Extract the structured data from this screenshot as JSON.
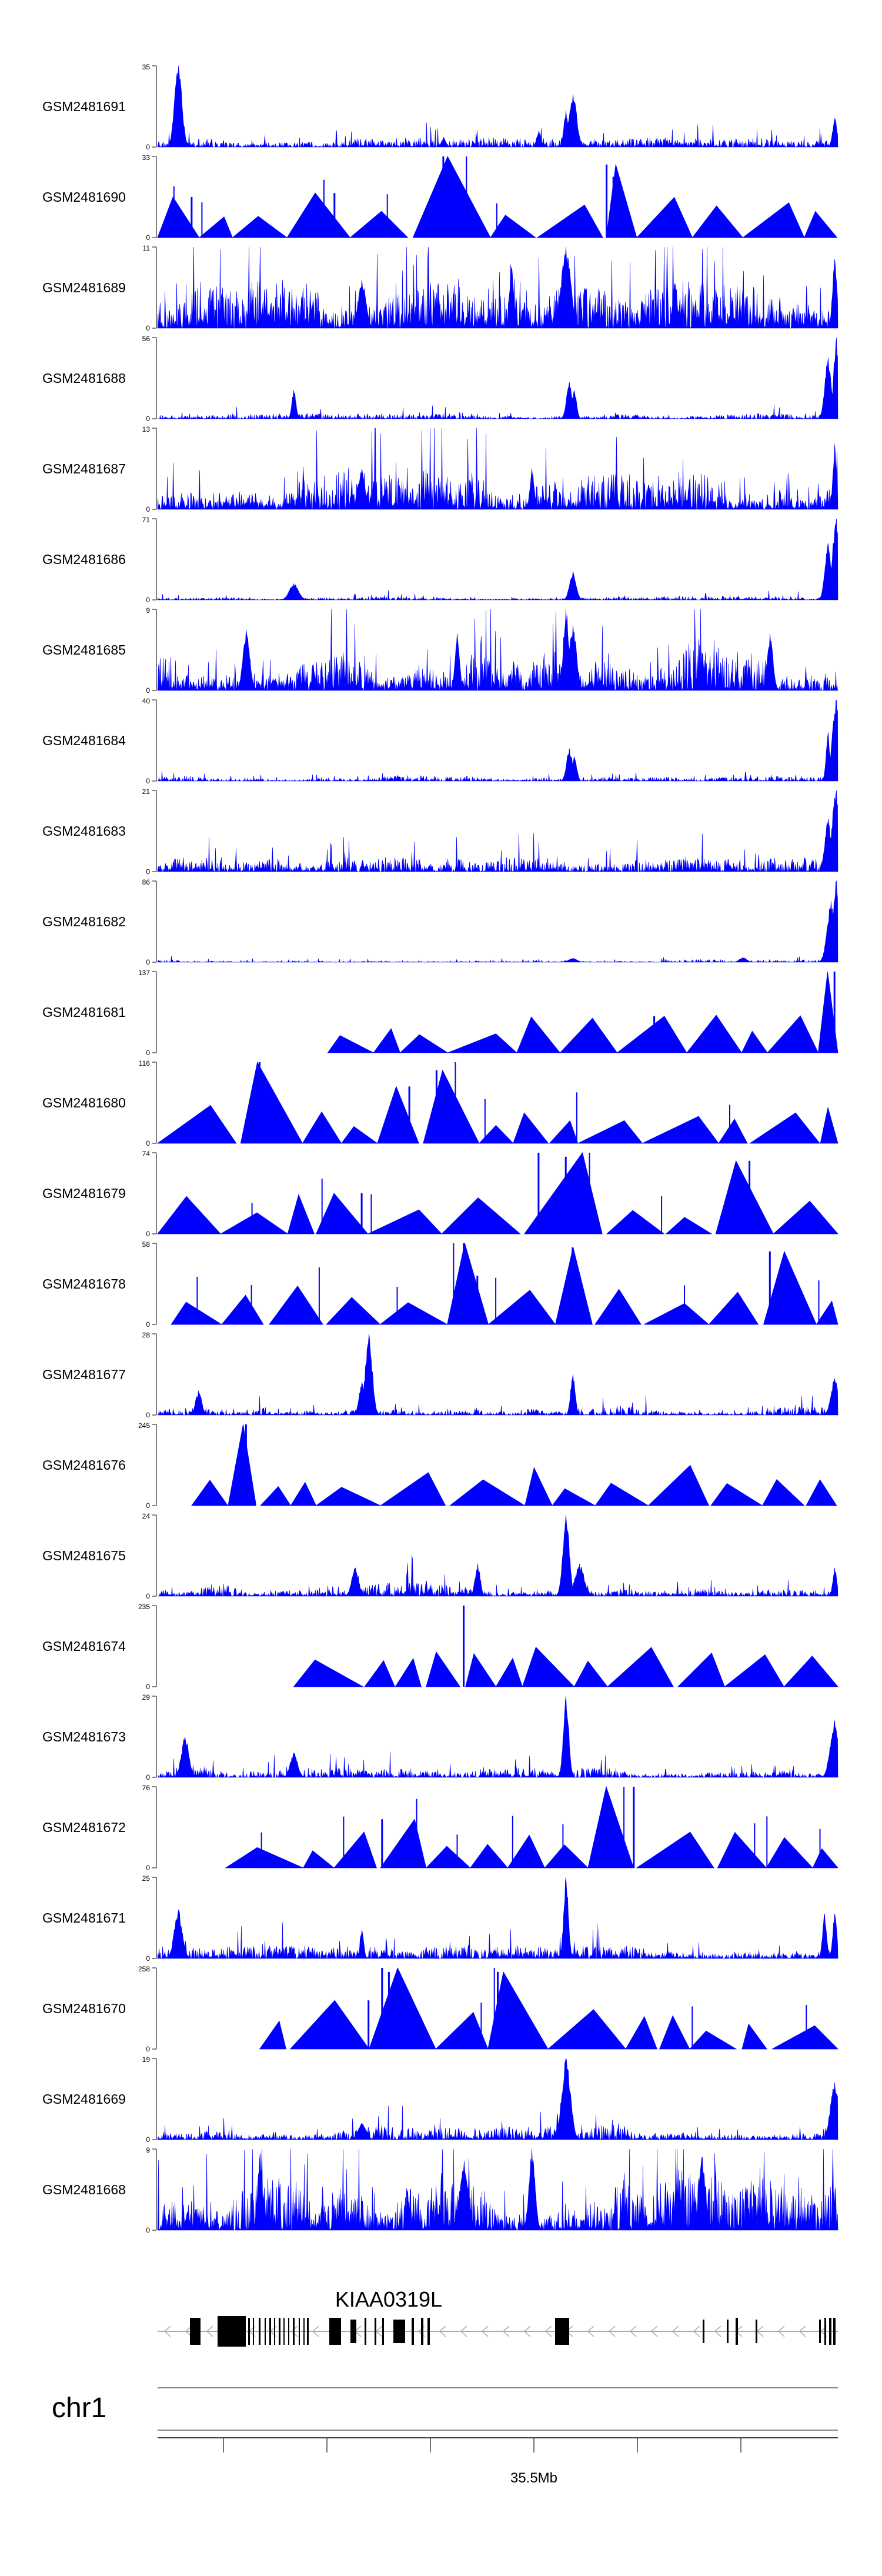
{
  "chart_data": {
    "type": "area",
    "title": "",
    "xlabel": "",
    "ylabel": "",
    "color": "#0000ff",
    "tracks": [
      {
        "name": "GSM2481691",
        "ymax": 35,
        "ymin": 0,
        "style": "noise",
        "baseline": 0.05,
        "density": 0.9,
        "peaks": [
          [
            0.03,
            1.0
          ],
          [
            0.61,
            0.65
          ],
          [
            0.6,
            0.45
          ],
          [
            0.56,
            0.2
          ],
          [
            0.42,
            0.12
          ],
          [
            0.995,
            0.35
          ]
        ]
      },
      {
        "name": "GSM2481690",
        "ymax": 33,
        "ymin": 0,
        "style": "tri",
        "coverage": 1.0,
        "spiky": true,
        "peaks": [
          [
            0.42,
            1.0
          ],
          [
            0.43,
            0.85
          ],
          [
            0.66,
            0.9
          ],
          [
            0.67,
            0.75
          ],
          [
            0.05,
            0.5
          ],
          [
            0.26,
            0.55
          ]
        ]
      },
      {
        "name": "GSM2481689",
        "ymax": 11,
        "ymin": 0,
        "style": "noise",
        "baseline": 0.25,
        "density": 1.0,
        "peaks": [
          [
            0.6,
            1.0
          ],
          [
            0.52,
            0.75
          ],
          [
            0.995,
            0.85
          ],
          [
            0.3,
            0.6
          ],
          [
            0.76,
            0.55
          ]
        ]
      },
      {
        "name": "GSM2481688",
        "ymax": 56,
        "ymin": 0,
        "style": "noise",
        "baseline": 0.03,
        "density": 0.8,
        "peaks": [
          [
            0.2,
            0.35
          ],
          [
            0.605,
            0.45
          ],
          [
            0.612,
            0.35
          ],
          [
            0.985,
            0.75
          ],
          [
            0.997,
            1.0
          ]
        ]
      },
      {
        "name": "GSM2481687",
        "ymax": 13,
        "ymin": 0,
        "style": "noise",
        "baseline": 0.22,
        "density": 1.0,
        "peaks": [
          [
            0.995,
            0.8
          ],
          [
            0.3,
            0.5
          ],
          [
            0.55,
            0.5
          ]
        ]
      },
      {
        "name": "GSM2481686",
        "ymax": 71,
        "ymin": 0,
        "style": "noise",
        "baseline": 0.02,
        "density": 0.8,
        "peaks": [
          [
            0.2,
            0.2
          ],
          [
            0.61,
            0.35
          ],
          [
            0.985,
            0.7
          ],
          [
            0.997,
            1.0
          ]
        ]
      },
      {
        "name": "GSM2481685",
        "ymax": 9,
        "ymin": 0,
        "style": "noise",
        "baseline": 0.28,
        "density": 1.0,
        "peaks": [
          [
            0.6,
            1.0
          ],
          [
            0.61,
            0.8
          ],
          [
            0.13,
            0.75
          ],
          [
            0.44,
            0.7
          ],
          [
            0.9,
            0.7
          ]
        ]
      },
      {
        "name": "GSM2481684",
        "ymax": 40,
        "ymin": 0,
        "style": "noise",
        "baseline": 0.03,
        "density": 0.85,
        "peaks": [
          [
            0.605,
            0.4
          ],
          [
            0.612,
            0.3
          ],
          [
            0.985,
            0.6
          ],
          [
            0.997,
            1.0
          ]
        ]
      },
      {
        "name": "GSM2481683",
        "ymax": 21,
        "ymin": 0,
        "style": "noise",
        "baseline": 0.08,
        "density": 0.9,
        "peaks": [
          [
            0.985,
            0.65
          ],
          [
            0.997,
            1.0
          ]
        ]
      },
      {
        "name": "GSM2481682",
        "ymax": 86,
        "ymin": 0,
        "style": "noise",
        "baseline": 0.015,
        "density": 0.7,
        "peaks": [
          [
            0.61,
            0.05
          ],
          [
            0.86,
            0.06
          ],
          [
            0.99,
            0.75
          ],
          [
            0.997,
            1.0
          ]
        ]
      },
      {
        "name": "GSM2481681",
        "ymax": 137,
        "ymin": 0,
        "style": "tri",
        "coverage": 0.75,
        "spiky": false,
        "peaks": [
          [
            0.995,
            1.0
          ],
          [
            0.73,
            0.45
          ]
        ]
      },
      {
        "name": "GSM2481680",
        "ymax": 116,
        "ymin": 0,
        "style": "tri",
        "coverage": 1.0,
        "spiky": true,
        "peaks": [
          [
            0.15,
            1.0
          ],
          [
            0.41,
            0.9
          ],
          [
            0.37,
            0.7
          ],
          [
            0.24,
            0.3
          ]
        ]
      },
      {
        "name": "GSM2481679",
        "ymax": 74,
        "ymin": 0,
        "style": "tri",
        "coverage": 1.0,
        "spiky": true,
        "peaks": [
          [
            0.56,
            1.0
          ],
          [
            0.6,
            0.95
          ],
          [
            0.87,
            0.9
          ],
          [
            0.3,
            0.5
          ]
        ]
      },
      {
        "name": "GSM2481678",
        "ymax": 58,
        "ymin": 0,
        "style": "tri",
        "coverage": 0.98,
        "spiky": true,
        "peaks": [
          [
            0.45,
            1.0
          ],
          [
            0.61,
            0.95
          ],
          [
            0.9,
            0.9
          ],
          [
            0.47,
            0.6
          ]
        ]
      },
      {
        "name": "GSM2481677",
        "ymax": 28,
        "ymin": 0,
        "style": "noise",
        "baseline": 0.05,
        "density": 0.9,
        "peaks": [
          [
            0.31,
            1.0
          ],
          [
            0.61,
            0.5
          ],
          [
            0.3,
            0.4
          ],
          [
            0.06,
            0.3
          ],
          [
            0.995,
            0.45
          ]
        ]
      },
      {
        "name": "GSM2481676",
        "ymax": 245,
        "ymin": 0,
        "style": "tri",
        "coverage": 0.95,
        "spiky": false,
        "peaks": [
          [
            0.13,
            1.0
          ],
          [
            0.12,
            0.45
          ]
        ]
      },
      {
        "name": "GSM2481675",
        "ymax": 24,
        "ymin": 0,
        "style": "noise",
        "baseline": 0.08,
        "density": 0.95,
        "peaks": [
          [
            0.6,
            1.0
          ],
          [
            0.62,
            0.4
          ],
          [
            0.47,
            0.4
          ],
          [
            0.29,
            0.35
          ],
          [
            0.995,
            0.35
          ]
        ]
      },
      {
        "name": "GSM2481674",
        "ymax": 235,
        "ymin": 0,
        "style": "tri",
        "coverage": 0.8,
        "spiky": false,
        "peaks": [
          [
            0.45,
            1.0
          ]
        ]
      },
      {
        "name": "GSM2481673",
        "ymax": 29,
        "ymin": 0,
        "style": "noise",
        "baseline": 0.05,
        "density": 0.9,
        "peaks": [
          [
            0.6,
            1.0
          ],
          [
            0.995,
            0.7
          ],
          [
            0.04,
            0.5
          ],
          [
            0.2,
            0.3
          ]
        ]
      },
      {
        "name": "GSM2481672",
        "ymax": 76,
        "ymin": 0,
        "style": "tri",
        "coverage": 0.9,
        "spiky": true,
        "peaks": [
          [
            0.7,
            1.0
          ],
          [
            0.09,
            0.6
          ],
          [
            0.33,
            0.6
          ]
        ]
      },
      {
        "name": "GSM2481671",
        "ymax": 25,
        "ymin": 0,
        "style": "noise",
        "baseline": 0.07,
        "density": 0.95,
        "peaks": [
          [
            0.6,
            1.0
          ],
          [
            0.03,
            0.6
          ],
          [
            0.98,
            0.55
          ],
          [
            0.995,
            0.55
          ],
          [
            0.3,
            0.35
          ]
        ]
      },
      {
        "name": "GSM2481670",
        "ymax": 258,
        "ymin": 0,
        "style": "tri",
        "coverage": 0.85,
        "spiky": true,
        "peaks": [
          [
            0.33,
            1.0
          ],
          [
            0.34,
            0.95
          ],
          [
            0.5,
            0.95
          ],
          [
            0.31,
            0.6
          ]
        ]
      },
      {
        "name": "GSM2481669",
        "ymax": 19,
        "ymin": 0,
        "style": "noise",
        "baseline": 0.08,
        "density": 0.95,
        "peaks": [
          [
            0.6,
            1.0
          ],
          [
            0.995,
            0.7
          ],
          [
            0.3,
            0.2
          ]
        ]
      },
      {
        "name": "GSM2481668",
        "ymax": 9,
        "ymin": 0,
        "style": "noise",
        "baseline": 0.35,
        "density": 1.0,
        "peaks": [
          [
            0.55,
            1.0
          ],
          [
            0.15,
            0.95
          ],
          [
            0.8,
            0.9
          ],
          [
            0.45,
            0.85
          ]
        ]
      }
    ],
    "gene": {
      "name": "KIAA0319L",
      "strand": "-"
    },
    "chromosome": "chr1",
    "axis_label": "35.5Mb"
  }
}
